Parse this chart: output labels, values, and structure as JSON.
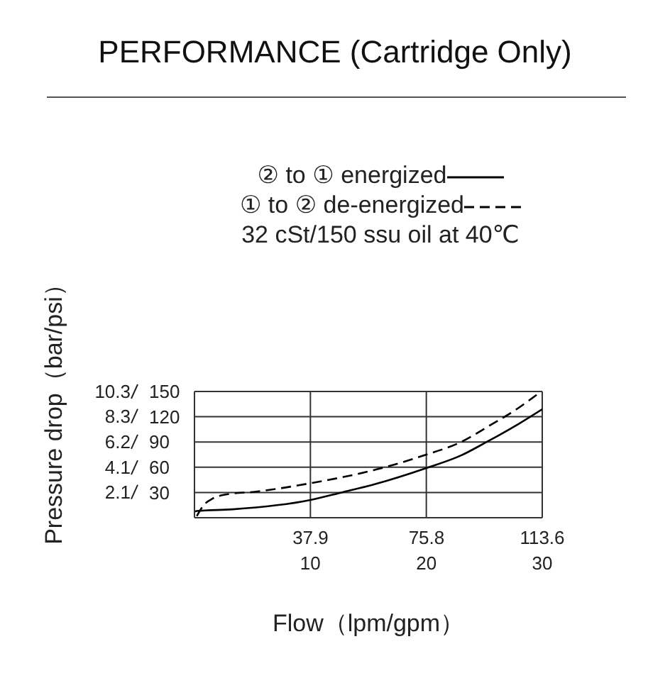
{
  "chart_data": {
    "type": "line",
    "title": "PERFORMANCE (Cartridge Only)",
    "xlabel": "Flow（lpm/gpm）",
    "ylabel": "Pressure drop（bar/psi）",
    "annotations": [
      "32 cSt/150 ssu oil at 40℃"
    ],
    "xlim": [
      0,
      30
    ],
    "xticks": [
      10,
      20,
      30
    ],
    "x2lim": [
      0,
      113.6
    ],
    "x2ticks": [
      37.9,
      75.8,
      113.6
    ],
    "ylim": [
      0,
      10.3
    ],
    "yticks": [
      2.1,
      4.1,
      6.2,
      8.3,
      10.3
    ],
    "y2lim": [
      0,
      150
    ],
    "y2ticks": [
      30,
      60,
      90,
      120,
      150
    ],
    "grid": true,
    "legend": "top",
    "marker": "none",
    "series": [
      {
        "name": "② to ① energized",
        "color": "#000000",
        "axis": "y2",
        "line_style": "solid",
        "x": [
          0,
          0.2,
          3.3,
          10,
          12.7,
          15.6,
          20,
          23,
          25.2,
          27.9,
          30
        ],
        "values": [
          7,
          8,
          10,
          21,
          30,
          40,
          59,
          74,
          90,
          111,
          129
        ]
      },
      {
        "name": "① to ② de-energized",
        "color": "#000000",
        "axis": "y2",
        "line_style": "dashed",
        "x": [
          0.2,
          0.8,
          1.6,
          2.9,
          5.3,
          10,
          15.6,
          20,
          23,
          25.4,
          27.9,
          29.9
        ],
        "values": [
          2,
          15,
          23,
          28,
          31,
          41,
          57,
          75,
          90,
          109,
          130,
          150
        ]
      }
    ]
  }
}
